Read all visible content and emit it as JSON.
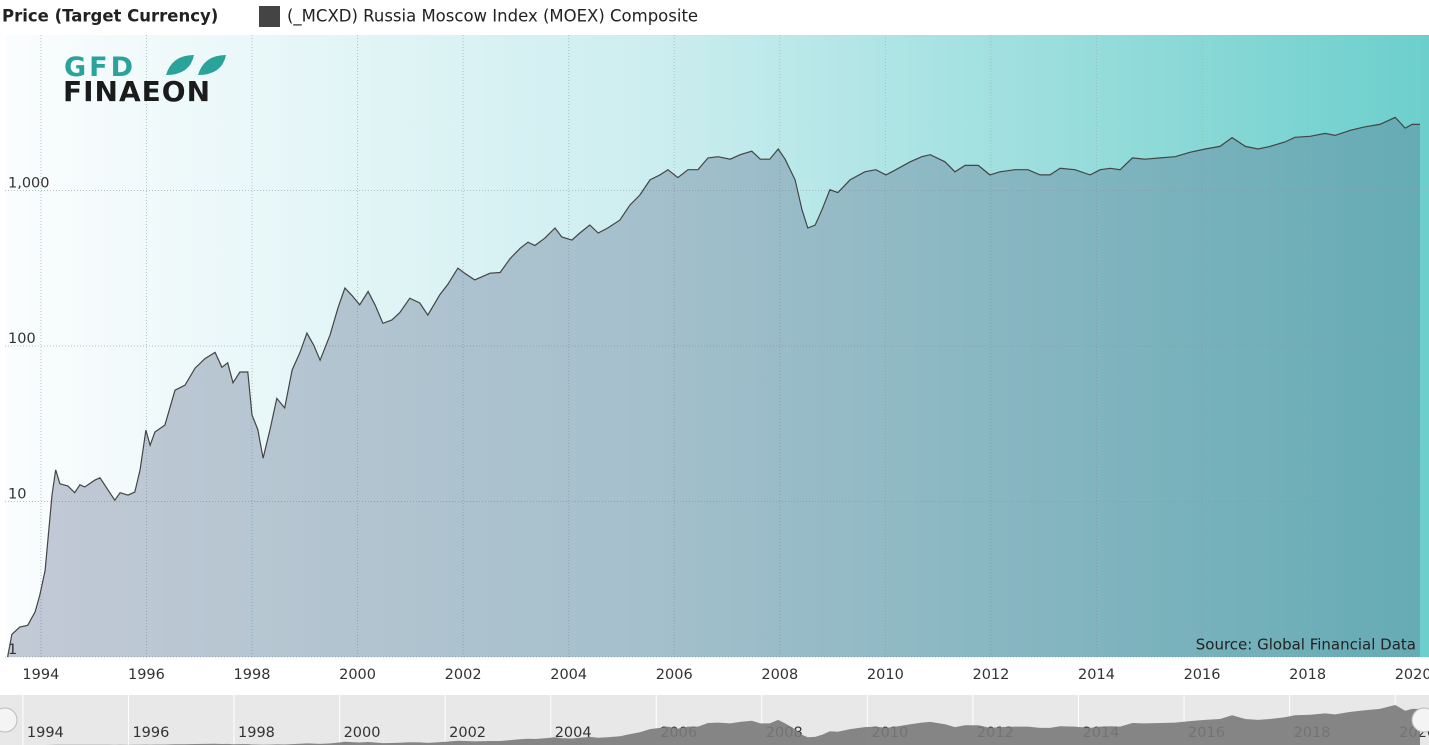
{
  "logo": {
    "top": "GFD",
    "bottom": "FINAEON"
  },
  "chart_data": {
    "type": "area",
    "title": "Price (Target Currency)",
    "source": "Source: Global Financial Data",
    "log_scale": true,
    "grid": true,
    "xlim": [
      1993.32,
      2020.3
    ],
    "ylim": [
      1,
      10000
    ],
    "xticks": [
      1994,
      1996,
      1998,
      2000,
      2002,
      2004,
      2006,
      2008,
      2010,
      2012,
      2014,
      2016,
      2018,
      2020
    ],
    "yticks": [
      1,
      10,
      100,
      {
        "value": 1000,
        "label": "1,000"
      }
    ],
    "x": [
      1993.37,
      1993.45,
      1993.6,
      1993.75,
      1993.89,
      1993.98,
      1994.08,
      1994.21,
      1994.28,
      1994.36,
      1994.51,
      1994.64,
      1994.74,
      1994.83,
      1995.02,
      1995.12,
      1995.27,
      1995.4,
      1995.5,
      1995.65,
      1995.78,
      1995.88,
      1995.99,
      1996.07,
      1996.16,
      1996.35,
      1996.54,
      1996.73,
      1996.92,
      1997.11,
      1997.3,
      1997.43,
      1997.54,
      1997.64,
      1997.77,
      1997.92,
      1998.0,
      1998.11,
      1998.21,
      1998.34,
      1998.47,
      1998.62,
      1998.76,
      1998.91,
      1999.04,
      1999.17,
      1999.29,
      1999.48,
      1999.63,
      1999.76,
      1999.89,
      2000.04,
      2000.2,
      2000.33,
      2000.48,
      2000.65,
      2000.8,
      2000.99,
      2001.18,
      2001.33,
      2001.56,
      2001.71,
      2001.9,
      2002.03,
      2002.22,
      2002.51,
      2002.7,
      2002.89,
      2003.08,
      2003.23,
      2003.36,
      2003.55,
      2003.74,
      2003.87,
      2004.06,
      2004.21,
      2004.4,
      2004.56,
      2004.74,
      2004.97,
      2005.16,
      2005.35,
      2005.54,
      2005.73,
      2005.88,
      2006.07,
      2006.26,
      2006.45,
      2006.64,
      2006.83,
      2007.06,
      2007.25,
      2007.47,
      2007.63,
      2007.81,
      2007.97,
      2008.1,
      2008.29,
      2008.42,
      2008.53,
      2008.67,
      2008.8,
      2008.95,
      2009.1,
      2009.33,
      2009.61,
      2009.82,
      2010.01,
      2010.2,
      2010.47,
      2010.69,
      2010.85,
      2011.13,
      2011.32,
      2011.51,
      2011.76,
      2011.98,
      2012.17,
      2012.46,
      2012.7,
      2012.93,
      2013.12,
      2013.31,
      2013.59,
      2013.88,
      2014.07,
      2014.26,
      2014.45,
      2014.68,
      2014.92,
      2015.21,
      2015.49,
      2015.77,
      2016.06,
      2016.34,
      2016.57,
      2016.82,
      2017.06,
      2017.29,
      2017.57,
      2017.76,
      2018.05,
      2018.33,
      2018.52,
      2018.81,
      2019.09,
      2019.37,
      2019.66,
      2019.85,
      2019.98,
      2020.13
    ],
    "series": [
      {
        "name": "(_MCXD) Russia Moscow Index (MOEX) Composite",
        "color": "#444444",
        "values": [
          1,
          1.4,
          1.56,
          1.6,
          1.95,
          2.5,
          3.6,
          11,
          16,
          13,
          12.6,
          11.4,
          12.8,
          12.4,
          13.7,
          14.2,
          11.9,
          10.2,
          11.4,
          11,
          11.5,
          16,
          28.8,
          23,
          28,
          31,
          52,
          56,
          72,
          83,
          91,
          73,
          78,
          58,
          68,
          68,
          36,
          29,
          19,
          29,
          46,
          40,
          70,
          91,
          121,
          101,
          81,
          118,
          176,
          236,
          212,
          184,
          224,
          184,
          140,
          147,
          164,
          203,
          189,
          158,
          214,
          249,
          317,
          294,
          266,
          294,
          297,
          365,
          425,
          465,
          443,
          494,
          574,
          502,
          480,
          533,
          600,
          533,
          574,
          645,
          805,
          935,
          1170,
          1260,
          1360,
          1210,
          1360,
          1360,
          1620,
          1650,
          1590,
          1700,
          1790,
          1590,
          1590,
          1850,
          1590,
          1170,
          753,
          574,
          600,
          753,
          1010,
          970,
          1170,
          1320,
          1360,
          1260,
          1360,
          1530,
          1650,
          1700,
          1530,
          1320,
          1450,
          1450,
          1260,
          1320,
          1360,
          1360,
          1260,
          1260,
          1390,
          1360,
          1260,
          1360,
          1390,
          1360,
          1620,
          1590,
          1620,
          1650,
          1760,
          1850,
          1920,
          2190,
          1920,
          1850,
          1920,
          2050,
          2200,
          2230,
          2330,
          2260,
          2440,
          2570,
          2660,
          2950,
          2520,
          2660,
          2660
        ]
      }
    ]
  }
}
